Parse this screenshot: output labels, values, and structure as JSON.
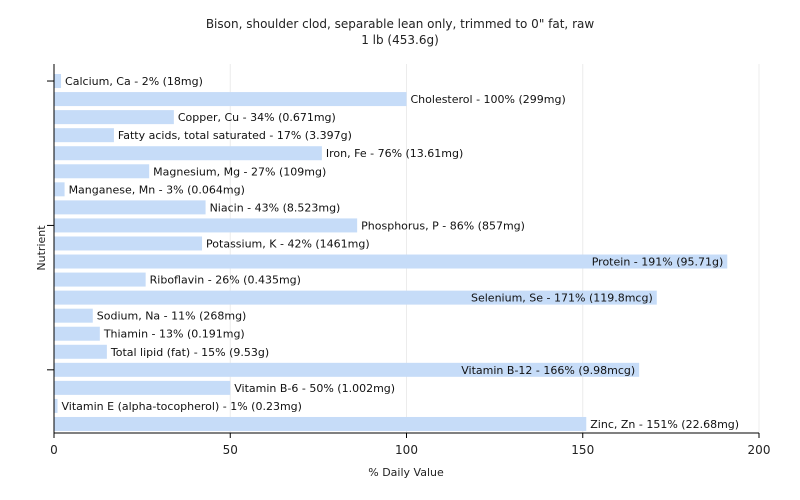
{
  "chart_data": {
    "type": "bar",
    "orientation": "horizontal",
    "title": "Bison, shoulder clod, separable lean only, trimmed to 0\" fat, raw",
    "subtitle": "1 lb (453.6g)",
    "xlabel": "% Daily Value",
    "ylabel": "Nutrient",
    "xlim": [
      0,
      200
    ],
    "xticks": [
      "0",
      "50",
      "100",
      "150",
      "200"
    ],
    "grid": true,
    "legend": "none",
    "bar_color": "#c6dcf8",
    "grid_color": "#ececec",
    "categories": [
      "Calcium, Ca",
      "Cholesterol",
      "Copper, Cu",
      "Fatty acids, total saturated",
      "Iron, Fe",
      "Magnesium, Mg",
      "Manganese, Mn",
      "Niacin",
      "Phosphorus, P",
      "Potassium, K",
      "Protein",
      "Riboflavin",
      "Selenium, Se",
      "Sodium, Na",
      "Thiamin",
      "Total lipid (fat)",
      "Vitamin B-12",
      "Vitamin B-6",
      "Vitamin E (alpha-tocopherol)",
      "Zinc, Zn"
    ],
    "values": [
      2,
      100,
      34,
      17,
      76,
      27,
      3,
      43,
      86,
      42,
      191,
      26,
      171,
      11,
      13,
      15,
      166,
      50,
      1,
      151
    ],
    "labels": [
      "Calcium, Ca - 2% (18mg)",
      "Cholesterol - 100% (299mg)",
      "Copper, Cu - 34% (0.671mg)",
      "Fatty acids, total saturated - 17% (3.397g)",
      "Iron, Fe - 76% (13.61mg)",
      "Magnesium, Mg - 27% (109mg)",
      "Manganese, Mn - 3% (0.064mg)",
      "Niacin - 43% (8.523mg)",
      "Phosphorus, P - 86% (857mg)",
      "Potassium, K - 42% (1461mg)",
      "Protein - 191% (95.71g)",
      "Riboflavin - 26% (0.435mg)",
      "Selenium, Se - 171% (119.8mcg)",
      "Sodium, Na - 11% (268mg)",
      "Thiamin - 13% (0.191mg)",
      "Total lipid (fat) - 15% (9.53g)",
      "Vitamin B-12 - 166% (9.98mcg)",
      "Vitamin B-6 - 50% (1.002mg)",
      "Vitamin E (alpha-tocopherol) - 1% (0.23mg)",
      "Zinc, Zn - 151% (22.68mg)"
    ]
  }
}
